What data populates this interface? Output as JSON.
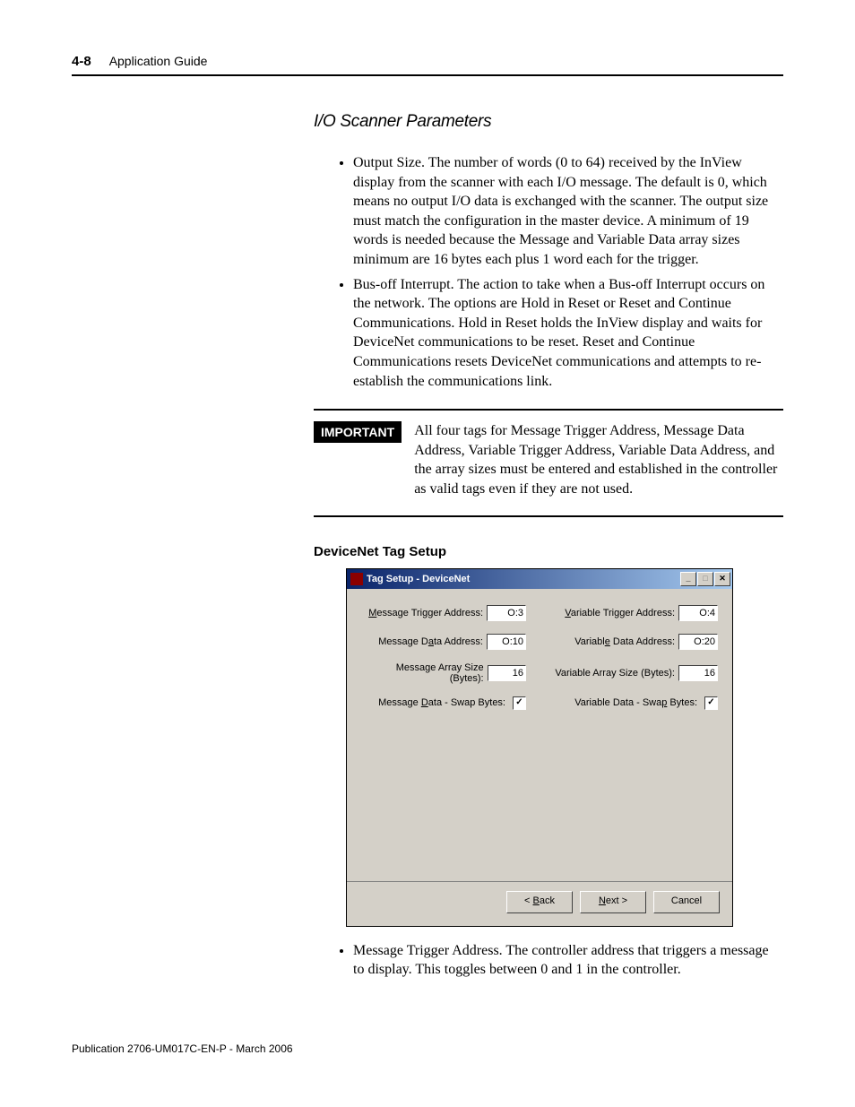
{
  "header": {
    "page_number": "4-8",
    "title": "Application Guide"
  },
  "section_title": "I/O Scanner Parameters",
  "bullets_top": [
    "Output Size. The number of words (0 to 64) received by the InView display from the scanner with each I/O message. The default is 0, which means no output I/O data is exchanged with the scanner. The output size must match the configuration in the master device. A minimum of 19 words is needed because the Message and Variable Data array sizes minimum are 16 bytes each plus 1 word each for the trigger.",
    "Bus-off Interrupt. The action to take when a Bus-off Interrupt occurs on the network. The options are Hold in Reset or Reset and Continue Communications. Hold in Reset holds the InView display and waits for DeviceNet communications to be reset. Reset and Continue Communications resets DeviceNet communications and attempts to re-establish the communications link."
  ],
  "important_label": "IMPORTANT",
  "important_text": "All four tags for Message Trigger Address, Message Data Address, Variable Trigger Address, Variable Data Address, and the array sizes must be entered and established in the controller as valid tags even if they are not used.",
  "subsection_title": "DeviceNet Tag Setup",
  "dialog": {
    "title": "Tag Setup - DeviceNet",
    "controls": {
      "min": "_",
      "max": "□",
      "close": "✕"
    },
    "fields": {
      "msg_trigger_label": "Message Trigger Address:",
      "msg_trigger_value": "O:3",
      "var_trigger_label": "Variable Trigger Address:",
      "var_trigger_value": "O:4",
      "msg_data_label": "Message Data Address:",
      "msg_data_value": "O:10",
      "var_data_label": "Variable Data Address:",
      "var_data_value": "O:20",
      "msg_array_label": "Message Array Size (Bytes):",
      "msg_array_value": "16",
      "var_array_label": "Variable Array Size (Bytes):",
      "var_array_value": "16",
      "msg_swap_label": "Message Data - Swap Bytes:",
      "var_swap_label": "Variable Data - Swap Bytes:",
      "check_mark": "✓"
    },
    "buttons": {
      "back": "< Back",
      "next": "Next >",
      "cancel": "Cancel"
    }
  },
  "bullets_bottom": [
    "Message Trigger Address. The controller address that triggers a message to display. This toggles between 0 and 1 in the controller."
  ],
  "footer": "Publication 2706-UM017C-EN-P - March 2006"
}
